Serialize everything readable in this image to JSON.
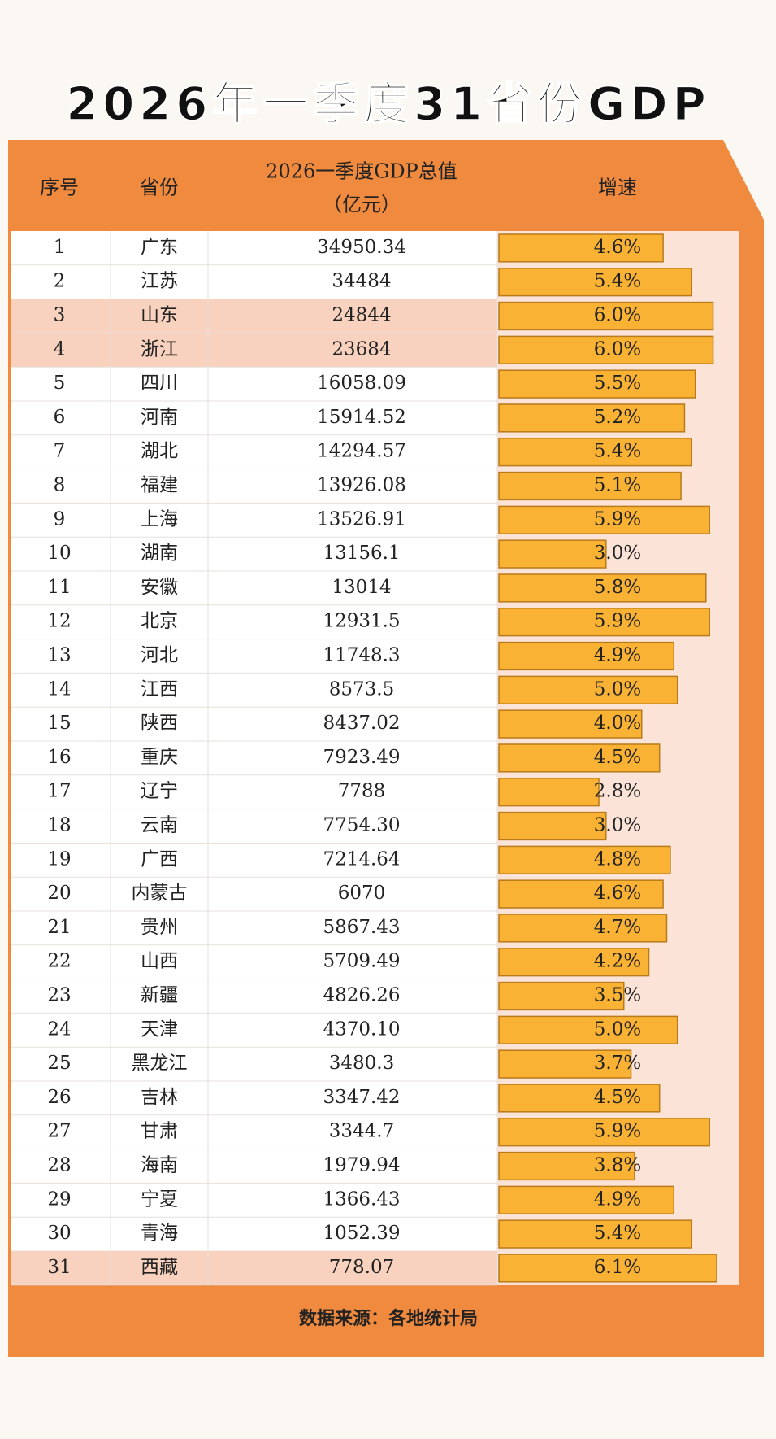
{
  "header": {
    "title": "2026年一季度31省份GDP"
  },
  "table": {
    "columns": [
      "序号",
      "省份",
      "2026一季度GDP总值",
      "（亿元）",
      "增速"
    ],
    "rows": [
      {
        "rank": 1,
        "province": "广东",
        "gdp": "34950.34",
        "growth": {
          "value": 4.6,
          "label": "4.6%"
        }
      },
      {
        "rank": 2,
        "province": "江苏",
        "gdp": "34484",
        "growth": {
          "value": 5.4,
          "label": "5.4%"
        }
      },
      {
        "rank": 3,
        "province": "山东",
        "gdp": "24844",
        "growth": {
          "value": 6.0,
          "label": "6.0%"
        }
      },
      {
        "rank": 4,
        "province": "浙江",
        "gdp": "23684",
        "growth": {
          "value": 6.0,
          "label": "6.0%"
        }
      },
      {
        "rank": 5,
        "province": "四川",
        "gdp": "16058.09",
        "growth": {
          "value": 5.5,
          "label": "5.5%"
        }
      },
      {
        "rank": 6,
        "province": "河南",
        "gdp": "15914.52",
        "growth": {
          "value": 5.2,
          "label": "5.2%"
        }
      },
      {
        "rank": 7,
        "province": "湖北",
        "gdp": "14294.57",
        "growth": {
          "value": 5.4,
          "label": "5.4%"
        }
      },
      {
        "rank": 8,
        "province": "福建",
        "gdp": "13926.08",
        "growth": {
          "value": 5.1,
          "label": "5.1%"
        }
      },
      {
        "rank": 9,
        "province": "上海",
        "gdp": "13526.91",
        "growth": {
          "value": 5.9,
          "label": "5.9%"
        }
      },
      {
        "rank": 10,
        "province": "湖南",
        "gdp": "13156.1",
        "growth": {
          "value": 3.0,
          "label": "3.0%"
        }
      },
      {
        "rank": 11,
        "province": "安徽",
        "gdp": "13014",
        "growth": {
          "value": 5.8,
          "label": "5.8%"
        }
      },
      {
        "rank": 12,
        "province": "北京",
        "gdp": "12931.5",
        "growth": {
          "value": 5.9,
          "label": "5.9%"
        }
      },
      {
        "rank": 13,
        "province": "河北",
        "gdp": "11748.3",
        "growth": {
          "value": 4.9,
          "label": "4.9%"
        }
      },
      {
        "rank": 14,
        "province": "江西",
        "gdp": "8573.5",
        "growth": {
          "value": 5.0,
          "label": "5.0%"
        }
      },
      {
        "rank": 15,
        "province": "陕西",
        "gdp": "8437.02",
        "growth": {
          "value": 4.0,
          "label": "4.0%"
        }
      },
      {
        "rank": 16,
        "province": "重庆",
        "gdp": "7923.49",
        "growth": {
          "value": 4.5,
          "label": "4.5%"
        }
      },
      {
        "rank": 17,
        "province": "辽宁",
        "gdp": "7788",
        "growth": {
          "value": 2.8,
          "label": "2.8%"
        }
      },
      {
        "rank": 18,
        "province": "云南",
        "gdp": "7754.30",
        "growth": {
          "value": 3.0,
          "label": "3.0%"
        }
      },
      {
        "rank": 19,
        "province": "广西",
        "gdp": "7214.64",
        "growth": {
          "value": 4.8,
          "label": "4.8%"
        }
      },
      {
        "rank": 20,
        "province": "内蒙古",
        "gdp": "6070",
        "growth": {
          "value": 4.6,
          "label": "4.6%"
        }
      },
      {
        "rank": 21,
        "province": "贵州",
        "gdp": "5867.43",
        "growth": {
          "value": 4.7,
          "label": "4.7%"
        }
      },
      {
        "rank": 22,
        "province": "山西",
        "gdp": "5709.49",
        "growth": {
          "value": 4.2,
          "label": "4.2%"
        }
      },
      {
        "rank": 23,
        "province": "新疆",
        "gdp": "4826.26",
        "growth": {
          "value": 3.5,
          "label": "3.5%"
        }
      },
      {
        "rank": 24,
        "province": "天津",
        "gdp": "4370.10",
        "growth": {
          "value": 5.0,
          "label": "5.0%"
        }
      },
      {
        "rank": 25,
        "province": "黑龙江",
        "gdp": "3480.3",
        "growth": {
          "value": 3.7,
          "label": "3.7%"
        }
      },
      {
        "rank": 26,
        "province": "吉林",
        "gdp": "3347.42",
        "growth": {
          "value": 4.5,
          "label": "4.5%"
        }
      },
      {
        "rank": 27,
        "province": "甘肃",
        "gdp": "3344.7",
        "growth": {
          "value": 5.9,
          "label": "5.9%"
        }
      },
      {
        "rank": 28,
        "province": "海南",
        "gdp": "1979.94",
        "growth": {
          "value": 3.8,
          "label": "3.8%"
        }
      },
      {
        "rank": 29,
        "province": "宁夏",
        "gdp": "1366.43",
        "growth": {
          "value": 4.9,
          "label": "4.9%"
        }
      },
      {
        "rank": 30,
        "province": "青海",
        "gdp": "1052.39",
        "growth": {
          "value": 5.4,
          "label": "5.4%"
        }
      },
      {
        "rank": 31,
        "province": "西藏",
        "gdp": "778.07",
        "growth": {
          "value": 6.1,
          "label": "6.1%"
        }
      }
    ]
  },
  "footer": {
    "source": "数据来源：各地统计局"
  }
}
